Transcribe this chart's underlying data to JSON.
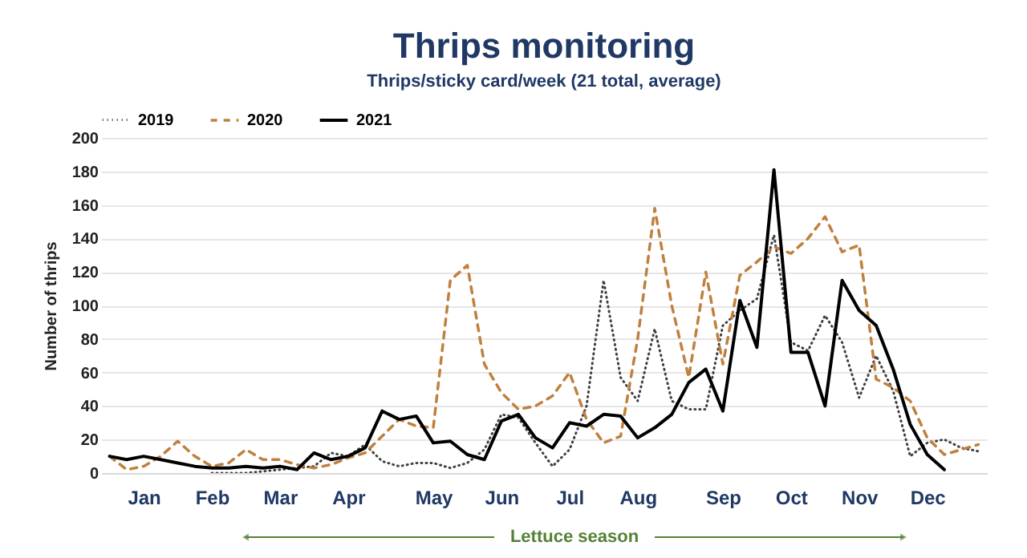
{
  "chart_data": {
    "type": "line",
    "title": "Thrips monitoring",
    "subtitle": "Thrips/sticky card/week (21 total, average)",
    "ylabel": "Number of thrips",
    "categories": [
      null,
      null,
      "Jan",
      null,
      null,
      null,
      "Feb",
      null,
      null,
      null,
      "Mar",
      null,
      null,
      null,
      "Apr",
      null,
      null,
      null,
      null,
      "May",
      null,
      null,
      null,
      "Jun",
      null,
      null,
      null,
      "Jul",
      null,
      null,
      null,
      "Aug",
      null,
      null,
      null,
      null,
      "Sep",
      null,
      null,
      null,
      "Oct",
      null,
      null,
      null,
      "Nov",
      null,
      null,
      null,
      "Dec",
      null,
      null,
      null
    ],
    "ylim": [
      0,
      200
    ],
    "yticks": [
      0,
      20,
      40,
      60,
      80,
      100,
      120,
      140,
      160,
      180,
      200
    ],
    "grid": "y",
    "legend": "top",
    "series": [
      {
        "name": "2019",
        "color": "#404040",
        "line_style": "dotted",
        "values": [
          null,
          null,
          null,
          null,
          null,
          null,
          0,
          0,
          0,
          1,
          2,
          3,
          4,
          12,
          10,
          17,
          7,
          4,
          6,
          6,
          3,
          6,
          14,
          35,
          33,
          18,
          4,
          14,
          40,
          115,
          57,
          43,
          86,
          43,
          38,
          38,
          88,
          97,
          104,
          142,
          78,
          73,
          94,
          78,
          45,
          70,
          49,
          10,
          18,
          20,
          15,
          13
        ]
      },
      {
        "name": "2020",
        "color": "#c0803f",
        "line_style": "dashed",
        "values": [
          10,
          2,
          4,
          10,
          19,
          10,
          4,
          6,
          14,
          8,
          8,
          5,
          3,
          5,
          9,
          12,
          22,
          32,
          28,
          27,
          115,
          124,
          65,
          48,
          38,
          40,
          46,
          60,
          32,
          18,
          22,
          80,
          158,
          100,
          57,
          120,
          65,
          118,
          126,
          135,
          131,
          140,
          153,
          132,
          136,
          56,
          51,
          43,
          21,
          11,
          14,
          17
        ]
      },
      {
        "name": "2021",
        "color": "#000000",
        "line_style": "solid",
        "values": [
          10,
          8,
          10,
          8,
          6,
          4,
          3,
          3,
          4,
          3,
          4,
          2,
          12,
          8,
          10,
          15,
          37,
          32,
          34,
          18,
          19,
          11,
          8,
          31,
          35,
          21,
          15,
          30,
          28,
          35,
          34,
          21,
          27,
          35,
          54,
          62,
          37,
          103,
          75,
          181,
          72,
          72,
          40,
          115,
          97,
          88,
          62,
          29,
          11,
          2,
          null,
          null
        ]
      }
    ],
    "annotations": [
      "Lettuce season"
    ]
  }
}
